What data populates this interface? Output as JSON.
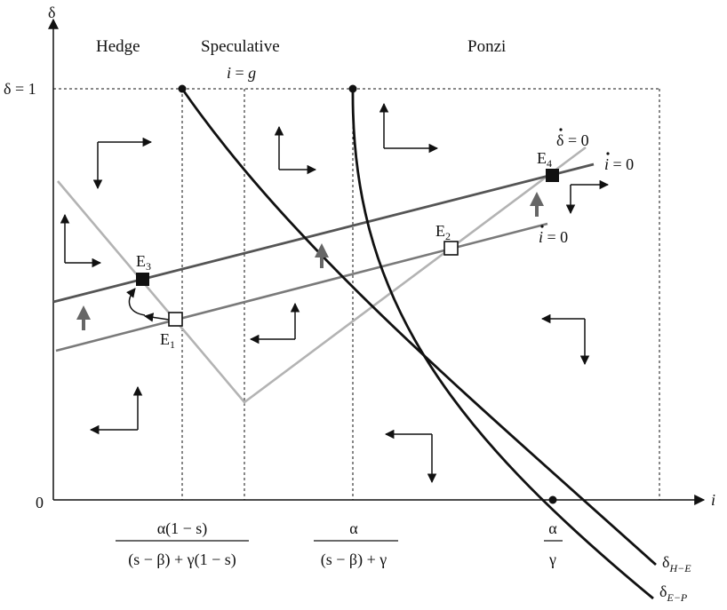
{
  "axes": {
    "y_label": "δ",
    "x_label": "i",
    "y_top_tick": "δ = 1",
    "origin": "0"
  },
  "regions": {
    "hedge": "Hedge",
    "speculative": "Speculative",
    "ponzi": "Ponzi"
  },
  "annotation_ig": {
    "i": "i",
    "eq": " = ",
    "g": "g"
  },
  "curves": {
    "delta_dot": {
      "main": "δ",
      "eq": " = 0"
    },
    "i_dot_upper": {
      "main": "i",
      "eq": " = 0"
    },
    "i_dot_lower": {
      "main": "i",
      "eq": " = 0"
    },
    "delta_he": {
      "main": "δ",
      "sub": "H−E"
    },
    "delta_ep": {
      "main": "δ",
      "sub": "E−P"
    }
  },
  "equilibria": {
    "e1": {
      "main": "E",
      "sub": "1"
    },
    "e2": {
      "main": "E",
      "sub": "2"
    },
    "e3": {
      "main": "E",
      "sub": "3"
    },
    "e4": {
      "main": "E",
      "sub": "4"
    }
  },
  "x_ticks": {
    "t1": {
      "num": "α(1 − s)",
      "den": "(s − β) + γ(1 − s)"
    },
    "t2": {
      "num": "α",
      "den": "(s − β) + γ"
    },
    "t3": {
      "num": "α",
      "den": "γ"
    }
  },
  "colors": {
    "axis": "#111111",
    "bold_curve": "#111111",
    "dark_gray_line": "#555555",
    "mid_gray_line": "#7a7a7a",
    "light_gray_line": "#b3b3b3"
  }
}
